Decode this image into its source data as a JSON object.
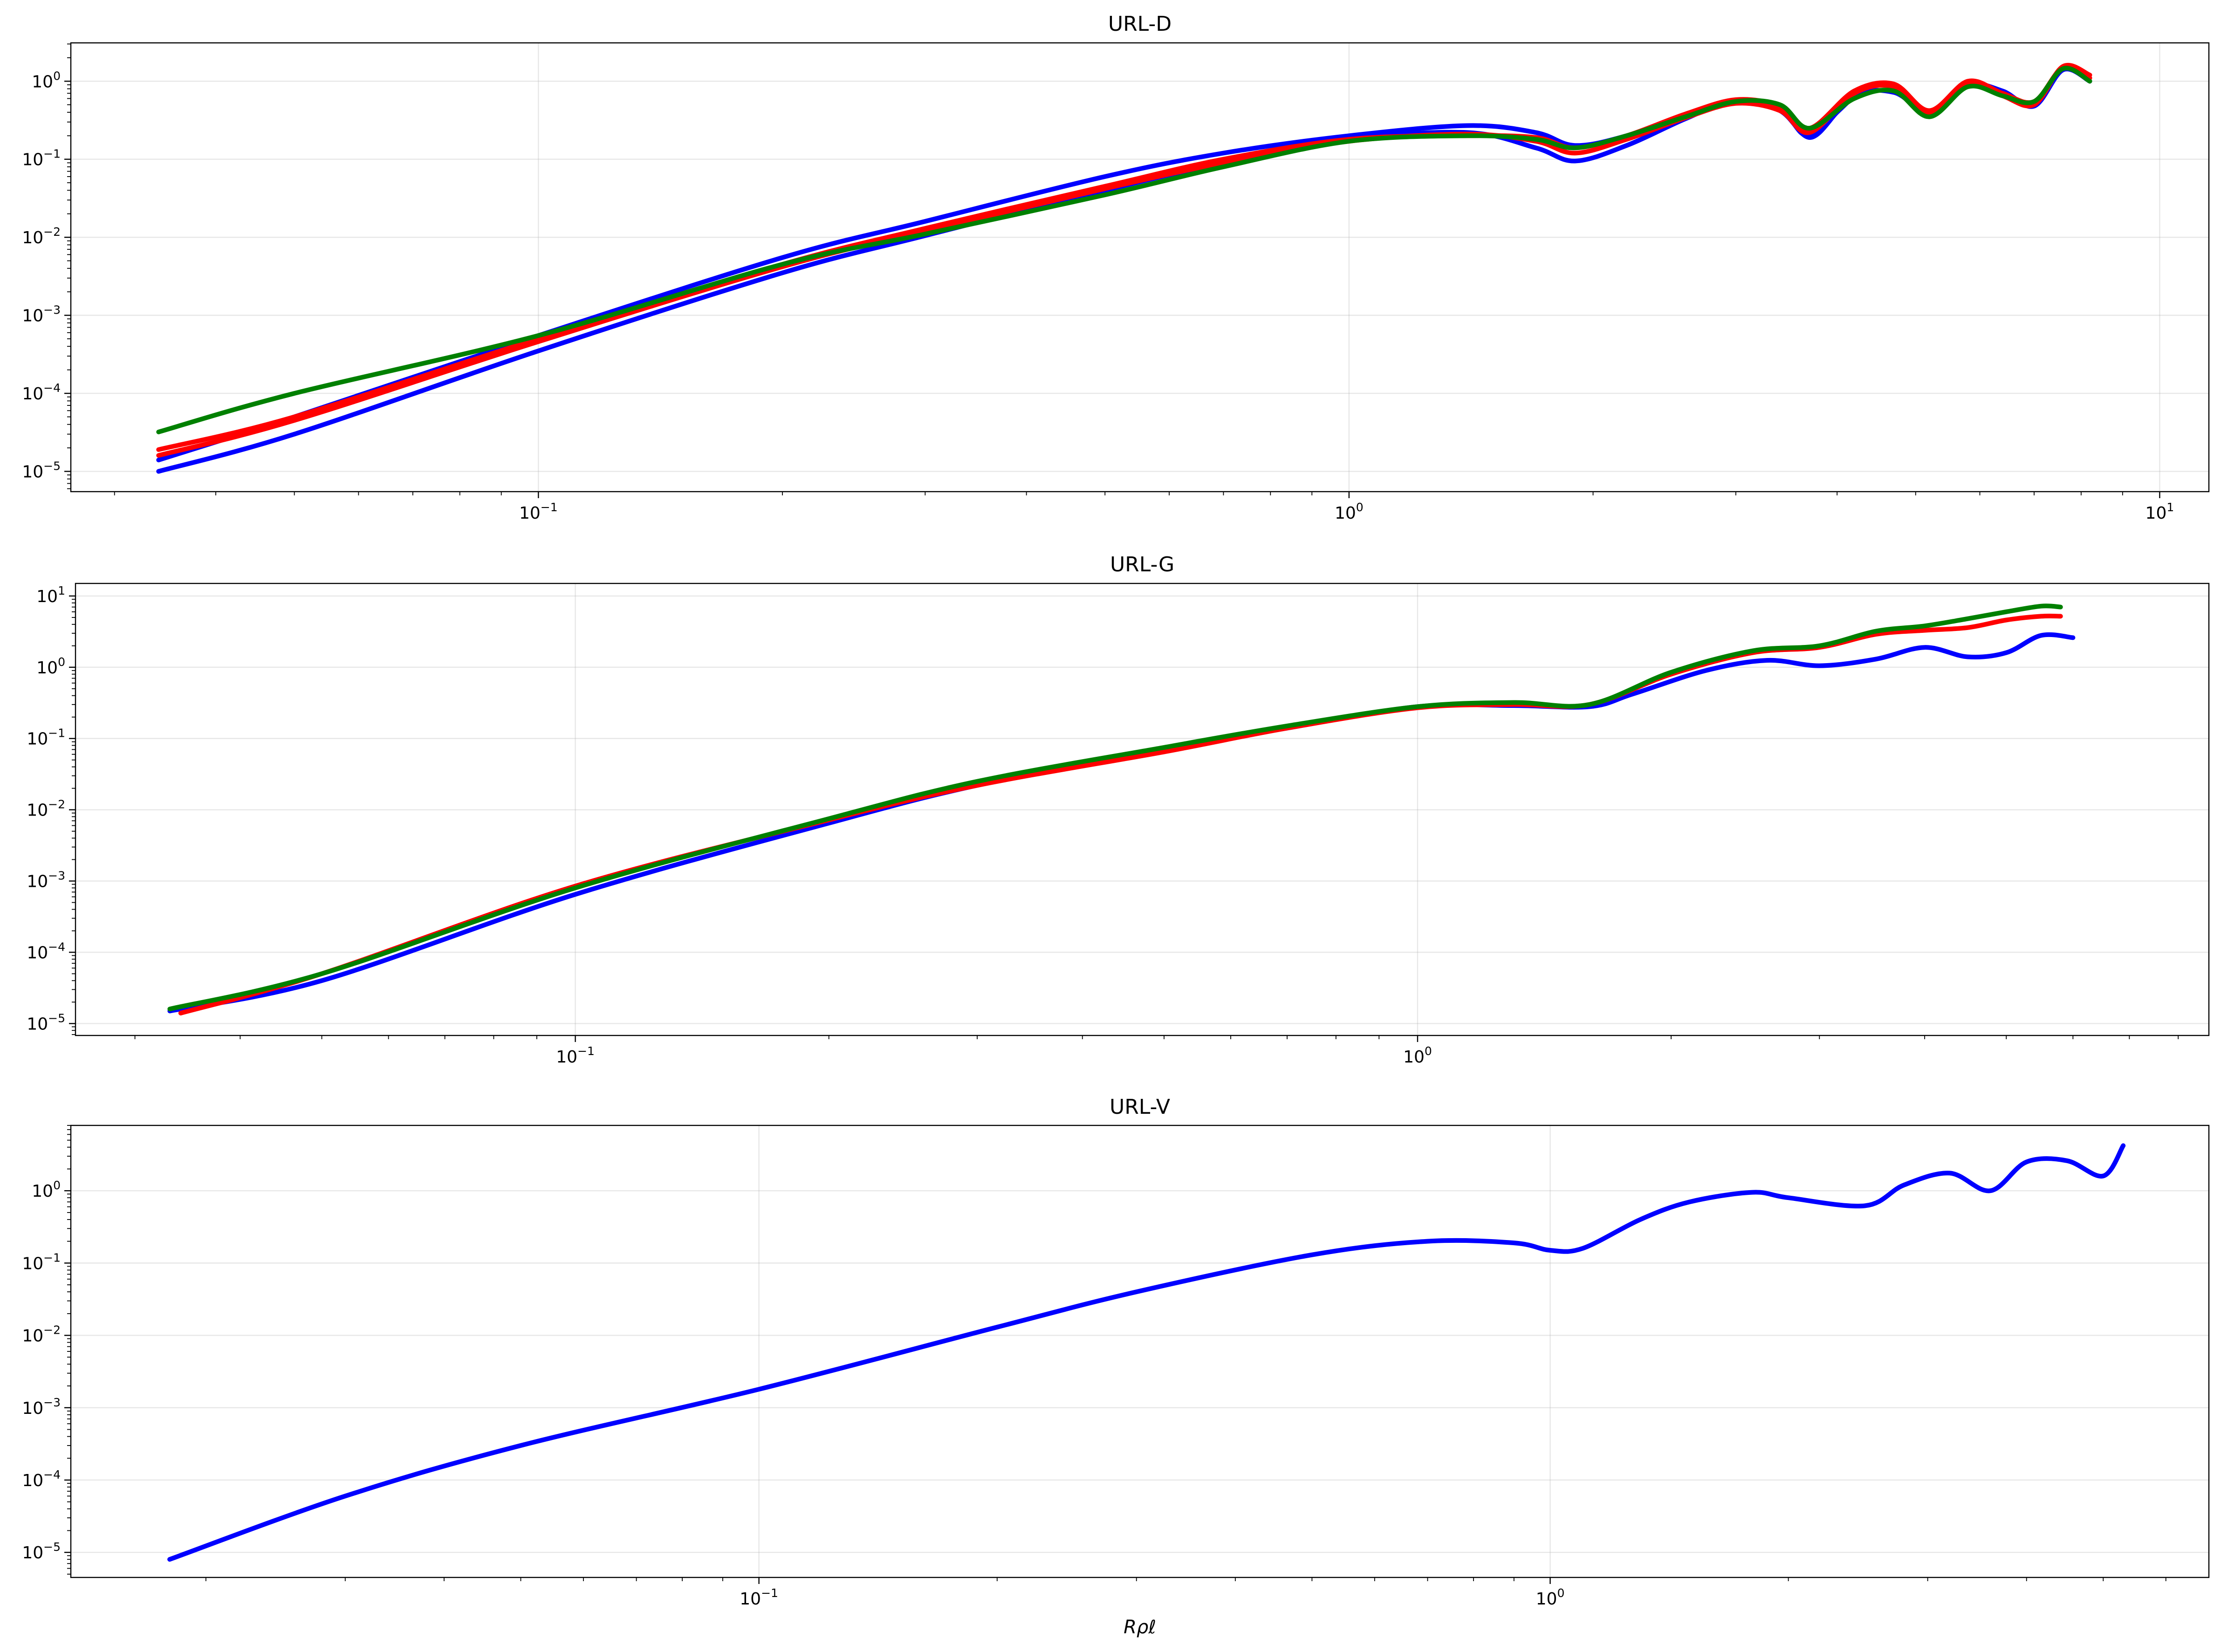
{
  "chart_data": [
    {
      "type": "line",
      "title": "URL-D",
      "xlabel": "",
      "ylabel": "",
      "xscale": "log",
      "yscale": "log",
      "xlim": [
        0.0265,
        11.5
      ],
      "ylim": [
        5.5e-06,
        3.1
      ],
      "grid": true,
      "x_tick_labels": [
        {
          "base": "10",
          "exp": "−1",
          "value": 0.1
        },
        {
          "base": "10",
          "exp": "0",
          "value": 1
        },
        {
          "base": "10",
          "exp": "1",
          "value": 10
        }
      ],
      "y_tick_labels": [
        {
          "base": "10",
          "exp": "−5",
          "value": 1e-05
        },
        {
          "base": "10",
          "exp": "−4",
          "value": 0.0001
        },
        {
          "base": "10",
          "exp": "−3",
          "value": 0.001
        },
        {
          "base": "10",
          "exp": "−2",
          "value": 0.01
        },
        {
          "base": "10",
          "exp": "−1",
          "value": 0.1
        },
        {
          "base": "10",
          "exp": "0",
          "value": 1
        }
      ],
      "series": [
        {
          "color": "#0000ff",
          "x": [
            0.034,
            0.05,
            0.1,
            0.2,
            0.3,
            0.5,
            0.7,
            1.0,
            1.4,
            1.7,
            1.9,
            2.2,
            2.6,
            3.0,
            3.4,
            3.7,
            4.0,
            4.2
          ],
          "y": [
            1e-05,
            3e-05,
            0.00035,
            0.0035,
            0.0105,
            0.04,
            0.09,
            0.18,
            0.22,
            0.14,
            0.095,
            0.15,
            0.33,
            0.57,
            0.42,
            0.19,
            0.4,
            0.65
          ]
        },
        {
          "color": "#0000ff",
          "x": [
            0.034,
            0.05,
            0.1,
            0.2,
            0.3,
            0.5,
            0.7,
            1.0,
            1.4,
            1.7,
            1.9,
            2.2,
            2.6,
            3.0,
            3.4,
            3.7,
            4.2,
            4.7,
            5.2,
            5.8,
            6.4,
            7.0,
            7.6,
            8.2
          ],
          "y": [
            1.4e-05,
            5e-05,
            0.00055,
            0.0055,
            0.016,
            0.06,
            0.12,
            0.2,
            0.27,
            0.22,
            0.15,
            0.2,
            0.37,
            0.55,
            0.45,
            0.2,
            0.65,
            0.72,
            0.4,
            0.9,
            0.75,
            0.48,
            1.4,
            1.0
          ]
        },
        {
          "color": "#ff0000",
          "x": [
            0.034,
            0.05,
            0.1,
            0.2,
            0.3,
            0.5,
            0.7,
            1.0,
            1.4,
            1.7,
            1.9,
            2.2,
            2.6,
            3.0,
            3.4,
            3.7,
            4.2,
            4.7,
            5.2,
            5.8,
            6.4,
            7.0,
            7.6,
            8.2
          ],
          "y": [
            1.9e-05,
            5e-05,
            0.0005,
            0.0045,
            0.013,
            0.045,
            0.1,
            0.18,
            0.2,
            0.19,
            0.14,
            0.2,
            0.38,
            0.58,
            0.48,
            0.25,
            0.75,
            0.92,
            0.42,
            1.0,
            0.7,
            0.55,
            1.5,
            1.1
          ]
        },
        {
          "color": "#ff0000",
          "x": [
            0.034,
            0.05,
            0.1,
            0.2,
            0.3,
            0.5,
            0.7,
            1.0,
            1.4,
            1.7,
            1.9,
            2.2,
            2.6,
            3.0,
            3.4,
            3.7,
            4.2,
            4.7,
            5.2,
            5.8,
            6.4,
            7.0,
            7.6,
            8.2
          ],
          "y": [
            1.6e-05,
            4.5e-05,
            0.00046,
            0.0042,
            0.012,
            0.042,
            0.09,
            0.17,
            0.21,
            0.17,
            0.12,
            0.18,
            0.34,
            0.52,
            0.42,
            0.22,
            0.7,
            0.85,
            0.38,
            0.95,
            0.65,
            0.5,
            1.55,
            1.2
          ]
        },
        {
          "color": "#008000",
          "x": [
            0.034,
            0.05,
            0.1,
            0.2,
            0.3,
            0.5,
            0.7,
            1.0,
            1.4,
            1.7,
            1.9,
            2.2,
            2.6,
            3.0,
            3.4,
            3.7,
            4.2,
            4.7,
            5.2,
            5.8,
            6.4,
            7.0,
            7.6,
            8.2
          ],
          "y": [
            3.2e-05,
            0.0001,
            0.00055,
            0.0045,
            0.011,
            0.035,
            0.08,
            0.17,
            0.2,
            0.18,
            0.14,
            0.2,
            0.35,
            0.55,
            0.5,
            0.25,
            0.6,
            0.75,
            0.35,
            0.85,
            0.65,
            0.55,
            1.45,
            1.0
          ]
        }
      ]
    },
    {
      "type": "line",
      "title": "URL-G",
      "xlabel": "",
      "ylabel": "",
      "xscale": "log",
      "yscale": "log",
      "xlim": [
        0.0255,
        8.7
      ],
      "ylim": [
        6.8e-06,
        15.0
      ],
      "grid": true,
      "x_tick_labels": [
        {
          "base": "10",
          "exp": "−1",
          "value": 0.1
        },
        {
          "base": "10",
          "exp": "0",
          "value": 1
        }
      ],
      "y_tick_labels": [
        {
          "base": "10",
          "exp": "−5",
          "value": 1e-05
        },
        {
          "base": "10",
          "exp": "−4",
          "value": 0.0001
        },
        {
          "base": "10",
          "exp": "−3",
          "value": 0.001
        },
        {
          "base": "10",
          "exp": "−2",
          "value": 0.01
        },
        {
          "base": "10",
          "exp": "−1",
          "value": 0.1
        },
        {
          "base": "10",
          "exp": "0",
          "value": 1
        },
        {
          "base": "10",
          "exp": "1",
          "value": 10
        }
      ],
      "series": [
        {
          "color": "#0000ff",
          "x": [
            0.033,
            0.05,
            0.1,
            0.2,
            0.3,
            0.5,
            0.7,
            1.0,
            1.3,
            1.6,
            1.8,
            2.2,
            2.6,
            3.0,
            3.5,
            4.0,
            4.5,
            5.0,
            5.5,
            6.0
          ],
          "y": [
            1.5e-05,
            4e-05,
            0.00065,
            0.0065,
            0.022,
            0.07,
            0.14,
            0.28,
            0.29,
            0.28,
            0.42,
            0.9,
            1.25,
            1.05,
            1.3,
            1.9,
            1.4,
            1.6,
            2.8,
            2.6
          ]
        },
        {
          "color": "#ff0000",
          "x": [
            0.034,
            0.05,
            0.1,
            0.2,
            0.3,
            0.5,
            0.7,
            1.0,
            1.3,
            1.6,
            2.0,
            2.5,
            3.0,
            3.5,
            4.0,
            4.5,
            5.0,
            5.5,
            5.8
          ],
          "y": [
            1.4e-05,
            5e-05,
            0.00085,
            0.0072,
            0.022,
            0.065,
            0.14,
            0.27,
            0.3,
            0.3,
            0.8,
            1.6,
            1.9,
            2.9,
            3.3,
            3.6,
            4.6,
            5.2,
            5.2
          ]
        },
        {
          "color": "#008000",
          "x": [
            0.033,
            0.05,
            0.1,
            0.2,
            0.3,
            0.5,
            0.7,
            1.0,
            1.3,
            1.6,
            2.0,
            2.5,
            3.0,
            3.5,
            4.0,
            4.5,
            5.0,
            5.5,
            5.8
          ],
          "y": [
            1.6e-05,
            5e-05,
            0.0008,
            0.0075,
            0.025,
            0.075,
            0.15,
            0.28,
            0.32,
            0.3,
            0.85,
            1.7,
            2.0,
            3.2,
            3.8,
            4.8,
            6.0,
            7.2,
            7.0
          ]
        }
      ]
    },
    {
      "type": "line",
      "title": "URL-V",
      "xlabel": "Rρℓ",
      "ylabel": "",
      "xscale": "log",
      "yscale": "log",
      "xlim": [
        0.0135,
        6.8
      ],
      "ylim": [
        4.5e-06,
        8.0
      ],
      "grid": true,
      "x_tick_labels": [
        {
          "base": "10",
          "exp": "−1",
          "value": 0.1
        },
        {
          "base": "10",
          "exp": "0",
          "value": 1
        }
      ],
      "y_tick_labels": [
        {
          "base": "10",
          "exp": "−5",
          "value": 1e-05
        },
        {
          "base": "10",
          "exp": "−4",
          "value": 0.0001
        },
        {
          "base": "10",
          "exp": "−3",
          "value": 0.001
        },
        {
          "base": "10",
          "exp": "−2",
          "value": 0.01
        },
        {
          "base": "10",
          "exp": "−1",
          "value": 0.1
        },
        {
          "base": "10",
          "exp": "0",
          "value": 1
        }
      ],
      "series": [
        {
          "color": "#0000ff",
          "x": [
            0.018,
            0.03,
            0.05,
            0.1,
            0.2,
            0.3,
            0.5,
            0.7,
            0.9,
            1.0,
            1.1,
            1.3,
            1.5,
            1.8,
            2.0,
            2.5,
            2.8,
            3.2,
            3.6,
            4.0,
            4.5,
            5.0,
            5.3
          ],
          "y": [
            8e-06,
            6e-05,
            0.0003,
            0.0018,
            0.013,
            0.04,
            0.13,
            0.2,
            0.19,
            0.15,
            0.16,
            0.4,
            0.7,
            0.95,
            0.8,
            0.62,
            1.2,
            1.75,
            1.0,
            2.5,
            2.6,
            1.6,
            4.2
          ]
        }
      ]
    }
  ]
}
